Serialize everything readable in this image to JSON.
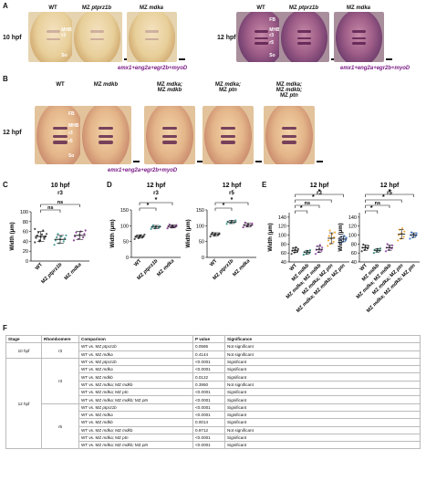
{
  "panels": {
    "A": "A",
    "B": "B",
    "C": "C",
    "D": "D",
    "E": "E",
    "F": "F"
  },
  "panelA": {
    "left": {
      "stage": "10 hpf",
      "images": [
        {
          "label": "WT",
          "marks": [
            "MHB",
            "r3",
            "So"
          ],
          "tone": "light"
        },
        {
          "label": "MZ ptprz1b",
          "tone": "light"
        },
        {
          "label": "MZ mdka",
          "tone": "light"
        }
      ]
    },
    "right": {
      "stage": "12 hpf",
      "images": [
        {
          "label": "WT",
          "marks": [
            "FB",
            "MHB",
            "r3",
            "r5",
            "So"
          ],
          "tone": "dark"
        },
        {
          "label": "MZ ptprz1b",
          "tone": "dark"
        },
        {
          "label": "MZ mdka",
          "tone": "dark"
        }
      ]
    },
    "caption": "emx1+eng2a+egr2b+myoD"
  },
  "panelB": {
    "stage": "12 hpf",
    "images": [
      {
        "label": "WT",
        "marks": [
          "FB",
          "MHB",
          "r3",
          "r5",
          "So"
        ]
      },
      {
        "label": "MZ mdkb"
      },
      {
        "label": "MZ mdka;\nMZ mdkb"
      },
      {
        "label": "MZ mdka;\nMZ ptn"
      },
      {
        "label": "MZ mdka;\nMZ mdkb;\nMZ ptn"
      }
    ],
    "caption": "emx1+eng2a+egr2b+myoD"
  },
  "colors": {
    "wt": "#2b2b2b",
    "ptprz1b": "#2a8f8a",
    "mdka": "#7a2a86",
    "mdkb": "#1a7a6a",
    "mdka_mdkb": "#8a3aa6",
    "mdka_ptn": "#f0a020",
    "triple": "#2a6ad0",
    "caption": "#7a1a86"
  },
  "chart_data": [
    {
      "type": "scatter",
      "panel": "C",
      "title": "10 hpf",
      "subtitle": "r3",
      "ylabel": "Width (μm)",
      "ylim": [
        0,
        100
      ],
      "yticks": [
        0,
        20,
        40,
        60,
        80,
        100
      ],
      "categories": [
        "WT",
        "MZ ptprz1b",
        "MZ mdka"
      ],
      "means": [
        50,
        44,
        52
      ],
      "sd": [
        10,
        8,
        8
      ],
      "points": [
        [
          38,
          42,
          45,
          47,
          49,
          50,
          52,
          54,
          55,
          58,
          62,
          65,
          40,
          48
        ],
        [
          33,
          36,
          40,
          42,
          44,
          46,
          48,
          50,
          52,
          55
        ],
        [
          42,
          45,
          48,
          50,
          53,
          55,
          58,
          60,
          62
        ]
      ],
      "comparisons": [
        {
          "from": 0,
          "to": 1,
          "label": "ns"
        },
        {
          "from": 0,
          "to": 2,
          "label": "ns"
        }
      ]
    },
    {
      "type": "scatter",
      "panel": "D",
      "title": "12 hpf",
      "subtitle": "r3",
      "ylabel": "Width (μm)",
      "ylim": [
        0,
        150
      ],
      "yticks": [
        0,
        50,
        100,
        150
      ],
      "categories": [
        "WT",
        "MZ ptprz1b",
        "MZ mdka"
      ],
      "means": [
        66,
        96,
        98
      ],
      "sd": [
        5,
        5,
        5
      ],
      "points": [
        [
          58,
          61,
          63,
          65,
          66,
          67,
          68,
          70,
          72
        ],
        [
          90,
          92,
          94,
          96,
          97,
          99,
          101
        ],
        [
          92,
          95,
          97,
          98,
          100,
          102,
          104,
          96
        ]
      ],
      "comparisons": [
        {
          "from": 0,
          "to": 1,
          "label": "*"
        },
        {
          "from": 0,
          "to": 2,
          "label": "*"
        }
      ]
    },
    {
      "type": "scatter",
      "panel": "D",
      "title": "12 hpf",
      "subtitle": "r5",
      "ylabel": "Width (μm)",
      "ylim": [
        0,
        150
      ],
      "yticks": [
        0,
        50,
        100,
        150
      ],
      "categories": [
        "WT",
        "MZ ptprz1b",
        "MZ mdka"
      ],
      "means": [
        73,
        112,
        102
      ],
      "sd": [
        5,
        5,
        6
      ],
      "points": [
        [
          66,
          69,
          71,
          73,
          74,
          76,
          78
        ],
        [
          106,
          109,
          111,
          113,
          115,
          117
        ],
        [
          95,
          98,
          100,
          102,
          104,
          107,
          110
        ]
      ],
      "comparisons": [
        {
          "from": 0,
          "to": 1,
          "label": "*"
        },
        {
          "from": 0,
          "to": 2,
          "label": "*"
        }
      ]
    },
    {
      "type": "scatter",
      "panel": "E",
      "title": "12 hpf",
      "subtitle": "r3",
      "ylabel": "Width (μm)",
      "ylim": [
        40,
        150
      ],
      "yticks": [
        40,
        60,
        80,
        100,
        120,
        140
      ],
      "categories": [
        "WT",
        "MZ mdkb",
        "MZ mdka; MZ mdkb",
        "MZ mdka; MZ ptn",
        "MZ mdka; MZ mdkb; MZ ptn"
      ],
      "means": [
        66,
        62,
        68,
        93,
        91
      ],
      "sd": [
        5,
        4,
        7,
        12,
        6
      ],
      "points": [
        [
          58,
          61,
          63,
          65,
          67,
          69,
          71,
          73
        ],
        [
          56,
          58,
          60,
          62,
          64,
          66
        ],
        [
          58,
          62,
          65,
          67,
          69,
          72,
          75,
          78
        ],
        [
          76,
          80,
          85,
          88,
          92,
          95,
          98,
          102,
          106,
          110
        ],
        [
          82,
          85,
          88,
          90,
          92,
          94,
          96,
          98
        ]
      ],
      "comparisons": [
        {
          "from": 0,
          "to": 1,
          "label": "*"
        },
        {
          "from": 0,
          "to": 2,
          "label": "ns"
        },
        {
          "from": 0,
          "to": 3,
          "label": "*"
        },
        {
          "from": 0,
          "to": 4,
          "label": "*"
        }
      ]
    },
    {
      "type": "scatter",
      "panel": "E",
      "title": "12 hpf",
      "subtitle": "r5",
      "ylabel": "Width (μm)",
      "ylim": [
        40,
        150
      ],
      "yticks": [
        40,
        60,
        80,
        100,
        120,
        140
      ],
      "categories": [
        "WT",
        "MZ mdkb",
        "MZ mdka; MZ mdkb",
        "MZ mdka; MZ ptn",
        "MZ mdka; MZ mdkb; MZ ptn"
      ],
      "means": [
        72,
        66,
        72,
        102,
        100
      ],
      "sd": [
        6,
        4,
        6,
        10,
        5
      ],
      "points": [
        [
          64,
          67,
          70,
          72,
          74,
          76,
          79
        ],
        [
          60,
          63,
          65,
          67,
          69,
          70
        ],
        [
          64,
          67,
          70,
          72,
          74,
          77,
          80
        ],
        [
          88,
          92,
          96,
          100,
          104,
          108,
          112,
          115
        ],
        [
          92,
          95,
          98,
          100,
          102,
          104,
          106
        ]
      ],
      "comparisons": [
        {
          "from": 0,
          "to": 1,
          "label": "*"
        },
        {
          "from": 0,
          "to": 2,
          "label": "ns"
        },
        {
          "from": 0,
          "to": 3,
          "label": "*"
        },
        {
          "from": 0,
          "to": 4,
          "label": "*"
        }
      ]
    }
  ],
  "table": {
    "headers": [
      "Stage",
      "Rhombomere",
      "Comparison",
      "P value",
      "Significance"
    ],
    "rows": [
      [
        "10 hpf",
        "r3",
        "WT vs. MZ ptprz1b",
        "0.0586",
        "Not significant"
      ],
      [
        "",
        "",
        "WT vs. MZ mdka",
        "0.4144",
        "Not significant"
      ],
      [
        "12 hpf",
        "r3",
        "WT vs. MZ ptprz1b",
        "<0.0001",
        "Significant"
      ],
      [
        "",
        "",
        "WT vs. MZ mdka",
        "<0.0001",
        "Significant"
      ],
      [
        "",
        "",
        "WT vs. MZ mdkb",
        "0.0122",
        "Significant"
      ],
      [
        "",
        "",
        "WT vs. MZ mdka; MZ mdkb",
        "0.3950",
        "Not significant"
      ],
      [
        "",
        "",
        "WT vs. MZ mdka; MZ ptn",
        "<0.0001",
        "Significant"
      ],
      [
        "",
        "",
        "WT vs. MZ mdka; MZ mdkb; MZ ptn",
        "<0.0001",
        "Significant"
      ],
      [
        "",
        "r5",
        "WT vs. MZ ptprz1b",
        "<0.0001",
        "Significant"
      ],
      [
        "",
        "",
        "WT vs. MZ mdka",
        "<0.0001",
        "Significant"
      ],
      [
        "",
        "",
        "WT vs. MZ mdkb",
        "0.0014",
        "Significant"
      ],
      [
        "",
        "",
        "WT vs. MZ mdka; MZ mdkb",
        "0.9712",
        "Not significant"
      ],
      [
        "",
        "",
        "WT vs. MZ mdka; MZ ptn",
        "<0.0001",
        "Significant"
      ],
      [
        "",
        "",
        "WT vs. MZ mdka; MZ mdkb; MZ ptn",
        "<0.0001",
        "Significant"
      ]
    ]
  }
}
